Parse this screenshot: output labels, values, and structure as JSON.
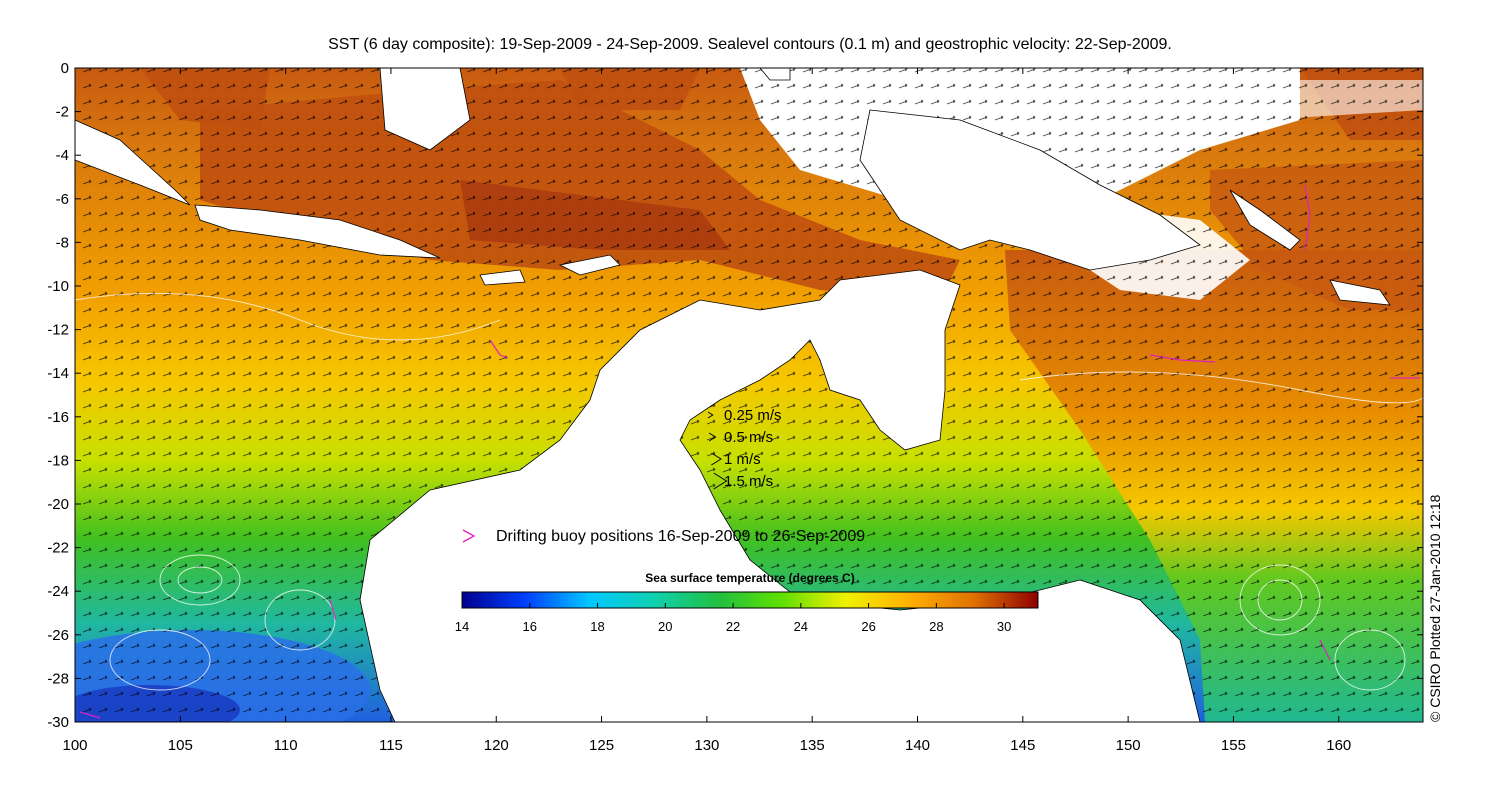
{
  "title": "SST (6 day composite): 19-Sep-2009 - 24-Sep-2009. Sealevel contours (0.1 m) and geostrophic velocity: 22-Sep-2009.",
  "credit": "© CSIRO Plotted 27-Jan-2010 12:18",
  "axes": {
    "x_ticks": [
      "100",
      "105",
      "110",
      "115",
      "120",
      "125",
      "130",
      "135",
      "140",
      "145",
      "150",
      "155",
      "160"
    ],
    "y_ticks": [
      "0",
      "-2",
      "-4",
      "-6",
      "-8",
      "-10",
      "-12",
      "-14",
      "-16",
      "-18",
      "-20",
      "-22",
      "-24",
      "-26",
      "-28",
      "-30"
    ],
    "xlim": [
      100,
      164
    ],
    "ylim": [
      -30,
      0
    ]
  },
  "velocity_legend": [
    {
      "label": "0.25 m/s",
      "speed": 0.25
    },
    {
      "label": "0.5 m/s",
      "speed": 0.5
    },
    {
      "label": "1 m/s",
      "speed": 1
    },
    {
      "label": "1.5 m/s",
      "speed": 1.5
    }
  ],
  "buoy_legend": {
    "label": "Drifting buoy positions 16-Sep-2009 to 26-Sep-2009",
    "color": "#e020c0"
  },
  "colorbar": {
    "title": "Sea surface temperature (degrees C)",
    "ticks": [
      "14",
      "16",
      "18",
      "20",
      "22",
      "24",
      "26",
      "28",
      "30"
    ],
    "range": [
      14,
      31
    ],
    "colors": [
      "#00008f",
      "#0040ff",
      "#00c8ff",
      "#10d0b0",
      "#20c040",
      "#60e000",
      "#f0f000",
      "#ffb000",
      "#e07000",
      "#8f0000"
    ]
  }
}
